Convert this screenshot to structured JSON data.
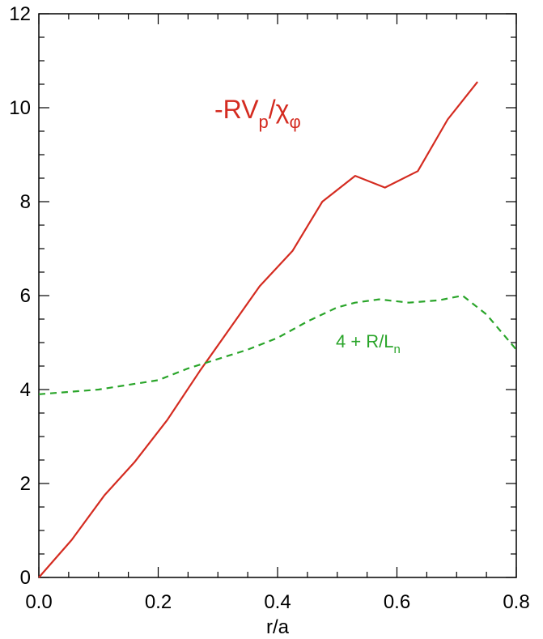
{
  "chart_data": {
    "type": "line",
    "xlabel": "r/a",
    "ylabel": "",
    "xlim": [
      0.0,
      0.8
    ],
    "ylim": [
      0,
      12
    ],
    "x_ticks": [
      "0.0",
      "0.2",
      "0.4",
      "0.6",
      "0.8"
    ],
    "y_ticks": [
      "0",
      "2",
      "4",
      "6",
      "8",
      "10",
      "12"
    ],
    "grid": false,
    "series": [
      {
        "name": "-RVp/χφ",
        "label_main": "-RV",
        "label_sub1": "p",
        "label_slash": "/χ",
        "label_sub2": "φ",
        "color": "#d42b20",
        "style": "solid",
        "x": [
          0.0,
          0.055,
          0.11,
          0.16,
          0.215,
          0.27,
          0.32,
          0.37,
          0.425,
          0.475,
          0.53,
          0.58,
          0.635,
          0.685,
          0.735
        ],
        "y": [
          0.0,
          0.8,
          1.75,
          2.45,
          3.35,
          4.4,
          5.3,
          6.2,
          6.95,
          8.0,
          8.55,
          8.3,
          8.65,
          9.75,
          10.55
        ]
      },
      {
        "name": "4 + R/Ln",
        "label_main": "4 + R/L",
        "label_sub": "n",
        "color": "#2aa52a",
        "style": "dashed",
        "x": [
          0.0,
          0.05,
          0.1,
          0.15,
          0.2,
          0.25,
          0.3,
          0.35,
          0.4,
          0.45,
          0.5,
          0.53,
          0.57,
          0.62,
          0.67,
          0.71,
          0.75,
          0.8
        ],
        "y": [
          3.9,
          3.95,
          4.0,
          4.1,
          4.2,
          4.45,
          4.65,
          4.85,
          5.1,
          5.45,
          5.75,
          5.85,
          5.92,
          5.85,
          5.9,
          6.0,
          5.6,
          4.85
        ]
      }
    ]
  }
}
